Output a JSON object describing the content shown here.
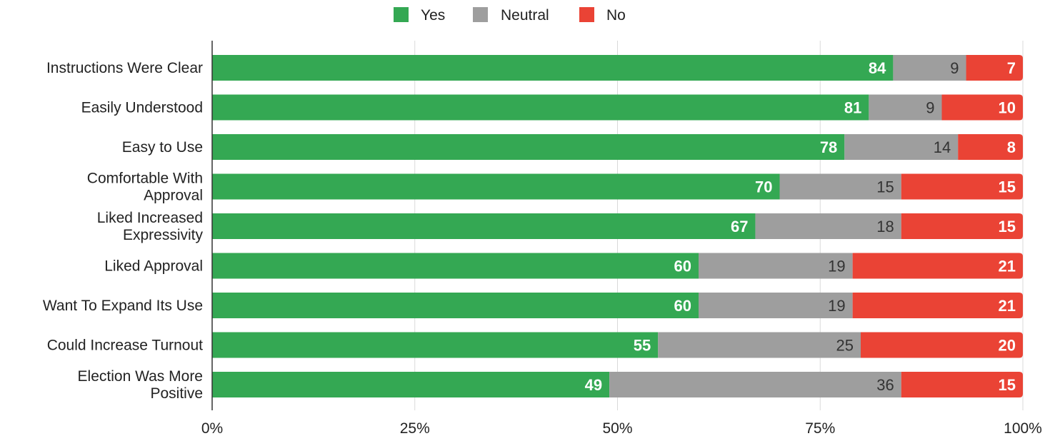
{
  "chart_data": {
    "type": "bar",
    "orientation": "horizontal",
    "stacked": true,
    "categories": [
      [
        "Instructions Were Clear"
      ],
      [
        "Easily Understood"
      ],
      [
        "Easy to Use"
      ],
      [
        "Comfortable With",
        "Approval"
      ],
      [
        "Liked Increased",
        "Expressivity"
      ],
      [
        "Liked Approval"
      ],
      [
        "Want To Expand Its Use"
      ],
      [
        "Could Increase Turnout"
      ],
      [
        "Election Was More",
        "Positive"
      ]
    ],
    "series": [
      {
        "name": "Yes",
        "color": "#34a853",
        "label_color": "#ffffff",
        "values": [
          84,
          81,
          78,
          70,
          67,
          60,
          60,
          55,
          49
        ]
      },
      {
        "name": "Neutral",
        "color": "#9e9e9e",
        "label_color": "#333333",
        "values": [
          9,
          9,
          14,
          15,
          18,
          19,
          19,
          25,
          36
        ]
      },
      {
        "name": "No",
        "color": "#ea4335",
        "label_color": "#ffffff",
        "values": [
          7,
          10,
          8,
          15,
          15,
          21,
          21,
          20,
          15
        ]
      }
    ],
    "xlim": [
      0,
      100
    ],
    "x_ticks": [
      0,
      25,
      50,
      75,
      100
    ],
    "x_tick_labels": [
      "0%",
      "25%",
      "50%",
      "75%",
      "100%"
    ],
    "grid": true,
    "legend_position": "top-center",
    "title": "",
    "xlabel": "",
    "ylabel": ""
  }
}
